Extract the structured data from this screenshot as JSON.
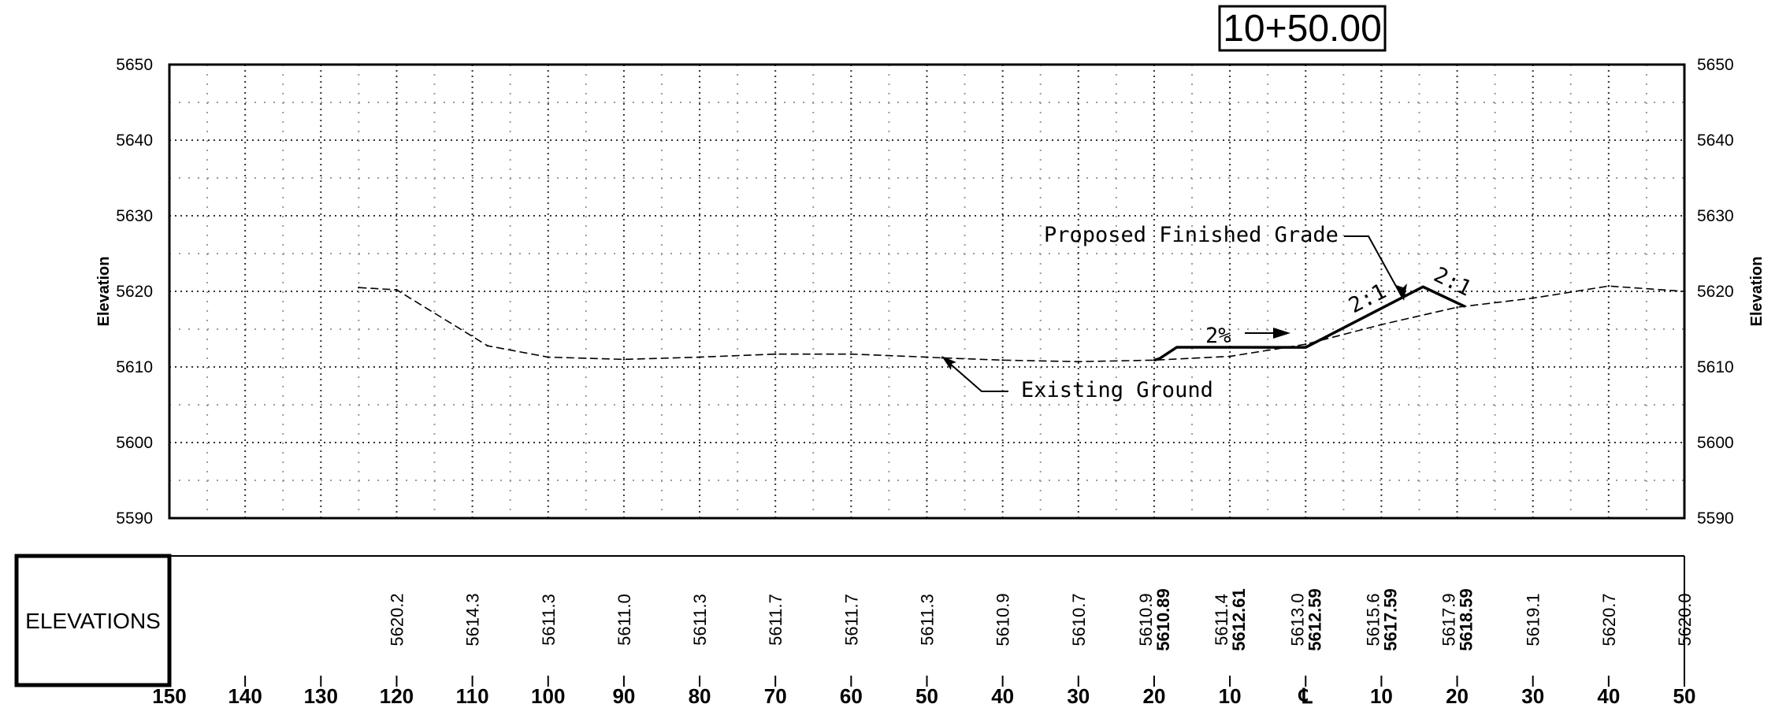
{
  "station_label": "10+50.00",
  "elevation_axis_title": "Elevation",
  "elevations_header": "ELEVATIONS",
  "annotations": {
    "finished_grade": "Proposed Finished Grade",
    "existing_ground": "Existing Ground",
    "grade_percent": "2%",
    "slope_left": "2:1",
    "slope_right": "2:1"
  },
  "chart_data": {
    "type": "line",
    "title": "10+50.00",
    "ylabel": "Elevation",
    "ylim": [
      5590,
      5650
    ],
    "yticks": [
      5590,
      5600,
      5610,
      5620,
      5630,
      5640,
      5650
    ],
    "xlim": [
      -150,
      50
    ],
    "xticks": [
      -150,
      -140,
      -130,
      -120,
      -110,
      -100,
      -90,
      -80,
      -70,
      -60,
      -50,
      -40,
      -30,
      -20,
      -10,
      0,
      10,
      20,
      30,
      40,
      50
    ],
    "xtick_labels": [
      "150",
      "140",
      "130",
      "120",
      "110",
      "100",
      "90",
      "80",
      "70",
      "60",
      "50",
      "40",
      "30",
      "20",
      "10",
      "℄",
      "10",
      "20",
      "30",
      "40",
      "50"
    ],
    "grid": true,
    "series": [
      {
        "name": "Existing Ground",
        "style": "dashed",
        "x": [
          -125,
          -120,
          -108,
          -100,
          -90,
          -80,
          -70,
          -60,
          -50,
          -48,
          -40,
          -30,
          -20,
          -10,
          0,
          10,
          20,
          30,
          40,
          50
        ],
        "y": [
          5620.5,
          5620.2,
          5612.8,
          5611.3,
          5611.0,
          5611.3,
          5611.7,
          5611.7,
          5611.3,
          5611.2,
          5610.9,
          5610.7,
          5610.9,
          5611.4,
          5613.0,
          5615.6,
          5617.9,
          5619.1,
          5620.7,
          5620.0
        ]
      },
      {
        "name": "Proposed Finished Grade",
        "style": "solid",
        "x": [
          -20,
          -19.3,
          -17,
          0,
          15.5,
          21
        ],
        "y": [
          5610.89,
          5611.1,
          5612.61,
          5612.59,
          5620.6,
          5618.0
        ]
      }
    ],
    "elevation_table": [
      {
        "x": -120,
        "values": [
          "5620.2"
        ]
      },
      {
        "x": -110,
        "values": [
          "5614.3"
        ]
      },
      {
        "x": -100,
        "values": [
          "5611.3"
        ]
      },
      {
        "x": -90,
        "values": [
          "5611.0"
        ]
      },
      {
        "x": -80,
        "values": [
          "5611.3"
        ]
      },
      {
        "x": -70,
        "values": [
          "5611.7"
        ]
      },
      {
        "x": -60,
        "values": [
          "5611.7"
        ]
      },
      {
        "x": -50,
        "values": [
          "5611.3"
        ]
      },
      {
        "x": -40,
        "values": [
          "5610.9"
        ]
      },
      {
        "x": -30,
        "values": [
          "5610.7"
        ]
      },
      {
        "x": -20,
        "values": [
          "5610.9",
          "5610.89"
        ]
      },
      {
        "x": -10,
        "values": [
          "5611.4",
          "5612.61"
        ]
      },
      {
        "x": 0,
        "values": [
          "5613.0",
          "5612.59"
        ]
      },
      {
        "x": 10,
        "values": [
          "5615.6",
          "5617.59"
        ]
      },
      {
        "x": 20,
        "values": [
          "5617.9",
          "5618.59"
        ]
      },
      {
        "x": 30,
        "values": [
          "5619.1"
        ]
      },
      {
        "x": 40,
        "values": [
          "5620.7"
        ]
      },
      {
        "x": 50,
        "values": [
          "5620.0"
        ]
      }
    ]
  }
}
